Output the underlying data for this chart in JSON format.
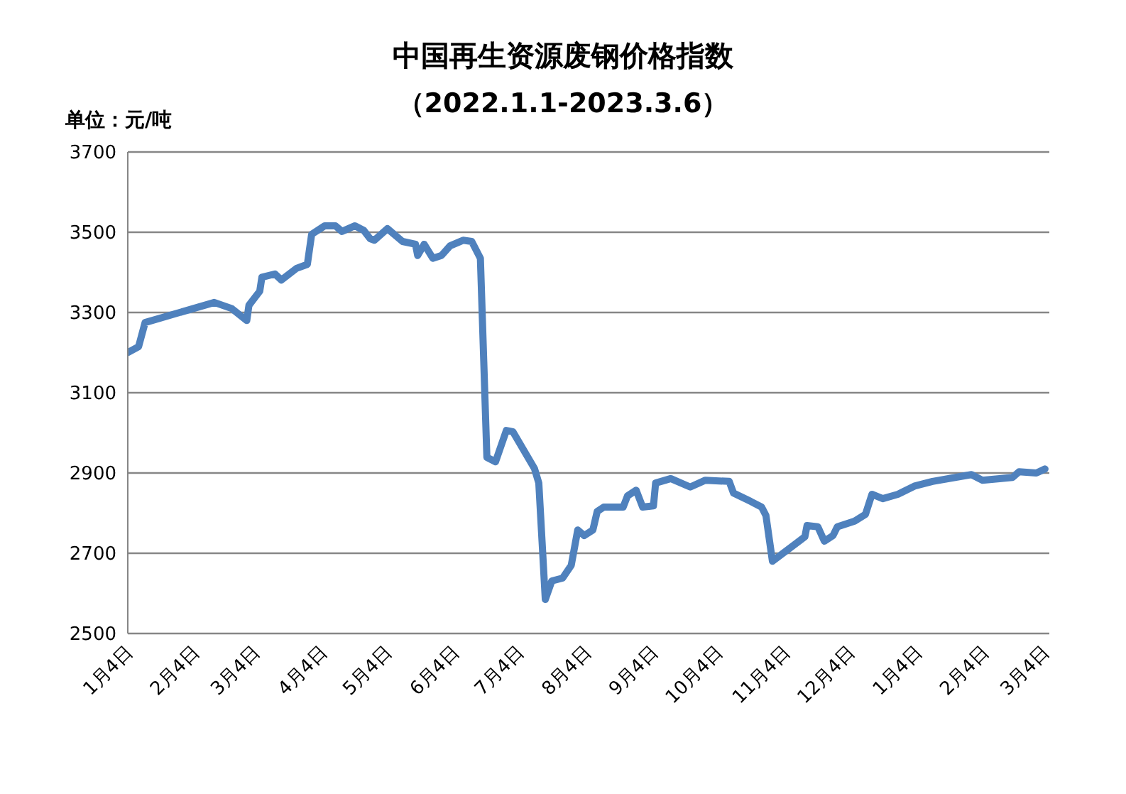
{
  "chart_data": {
    "type": "line",
    "title": "中国再生资源废钢价格指数",
    "subtitle": "（2022.1.1-2023.3.6）",
    "ylabel": "单位：元/吨",
    "x": [
      "2022-01-04",
      "2022-01-09",
      "2022-01-12",
      "2022-02-13",
      "2022-02-21",
      "2022-02-28",
      "2022-03-01",
      "2022-03-06",
      "2022-03-07",
      "2022-03-13",
      "2022-03-16",
      "2022-03-23",
      "2022-03-28",
      "2022-03-30",
      "2022-04-05",
      "2022-04-10",
      "2022-04-13",
      "2022-04-19",
      "2022-04-23",
      "2022-04-26",
      "2022-04-28",
      "2022-05-04",
      "2022-05-11",
      "2022-05-17",
      "2022-05-18",
      "2022-05-21",
      "2022-05-25",
      "2022-05-29",
      "2022-06-02",
      "2022-06-08",
      "2022-06-12",
      "2022-06-16",
      "2022-06-19",
      "2022-06-23",
      "2022-06-28",
      "2022-07-01",
      "2022-07-11",
      "2022-07-13",
      "2022-07-16",
      "2022-07-19",
      "2022-07-24",
      "2022-07-28",
      "2022-07-31",
      "2022-08-03",
      "2022-08-07",
      "2022-08-09",
      "2022-08-12",
      "2022-08-21",
      "2022-08-23",
      "2022-08-27",
      "2022-08-30",
      "2022-09-04",
      "2022-09-05",
      "2022-09-12",
      "2022-09-21",
      "2022-09-28",
      "2022-10-09",
      "2022-10-11",
      "2022-10-19",
      "2022-10-24",
      "2022-10-26",
      "2022-10-29",
      "2022-11-13",
      "2022-11-14",
      "2022-11-19",
      "2022-11-22",
      "2022-11-26",
      "2022-11-28",
      "2022-12-06",
      "2022-12-11",
      "2022-12-14",
      "2022-12-19",
      "2022-12-26",
      "2023-01-03",
      "2023-01-11",
      "2023-01-29",
      "2023-02-03",
      "2023-02-11",
      "2023-02-17",
      "2023-02-20",
      "2023-02-28",
      "2023-03-04"
    ],
    "series": [
      {
        "color": "#4f81bd",
        "values": [
          3200,
          3215,
          3275,
          3325,
          3310,
          3280,
          3318,
          3353,
          3388,
          3396,
          3381,
          3410,
          3420,
          3495,
          3516,
          3516,
          3502,
          3516,
          3505,
          3484,
          3480,
          3509,
          3477,
          3470,
          3442,
          3470,
          3435,
          3442,
          3466,
          3480,
          3477,
          3435,
          2939,
          2928,
          3006,
          3003,
          2911,
          2875,
          2585,
          2631,
          2638,
          2670,
          2758,
          2744,
          2758,
          2804,
          2815,
          2815,
          2843,
          2857,
          2815,
          2818,
          2875,
          2886,
          2865,
          2882,
          2879,
          2850,
          2829,
          2815,
          2794,
          2680,
          2741,
          2769,
          2766,
          2730,
          2744,
          2766,
          2780,
          2797,
          2847,
          2836,
          2847,
          2868,
          2879,
          2896,
          2882,
          2886,
          2889,
          2903,
          2900,
          2910
        ]
      }
    ],
    "xlim": [
      "2022-01-04",
      "2023-03-06"
    ],
    "xticks": [
      {
        "value": "2022-01-04",
        "label": "1月4日"
      },
      {
        "value": "2022-02-04",
        "label": "2月4日"
      },
      {
        "value": "2022-03-04",
        "label": "3月4日"
      },
      {
        "value": "2022-04-04",
        "label": "4月4日"
      },
      {
        "value": "2022-05-04",
        "label": "5月4日"
      },
      {
        "value": "2022-06-04",
        "label": "6月4日"
      },
      {
        "value": "2022-07-04",
        "label": "7月4日"
      },
      {
        "value": "2022-08-04",
        "label": "8月4日"
      },
      {
        "value": "2022-09-04",
        "label": "9月4日"
      },
      {
        "value": "2022-10-04",
        "label": "10月4日"
      },
      {
        "value": "2022-11-04",
        "label": "11月4日"
      },
      {
        "value": "2022-12-04",
        "label": "12月4日"
      },
      {
        "value": "2023-01-04",
        "label": "1月4日"
      },
      {
        "value": "2023-02-04",
        "label": "2月4日"
      },
      {
        "value": "2023-03-04",
        "label": "3月4日"
      }
    ],
    "ylim": [
      2500,
      3700
    ],
    "yticks": [
      2500,
      2700,
      2900,
      3100,
      3300,
      3500,
      3700
    ],
    "grid": "y",
    "legend": false,
    "marker": "none",
    "line_style": "solid"
  }
}
